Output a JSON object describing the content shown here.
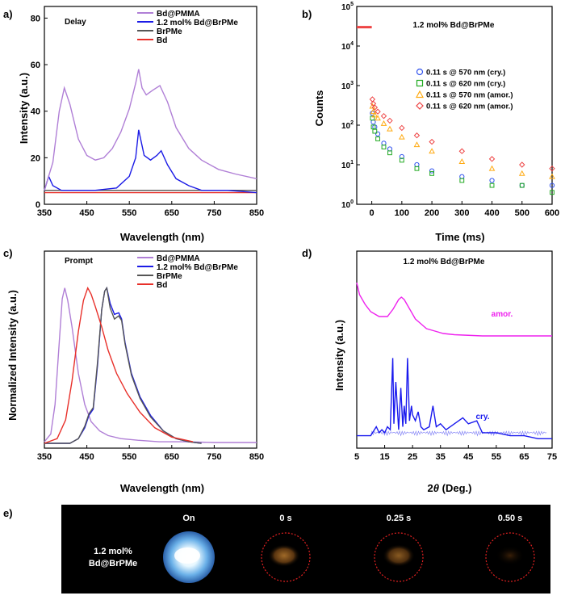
{
  "panels": {
    "a": {
      "letter": "a)",
      "annotation": "Delay",
      "xlabel": "Wavelength (nm)",
      "ylabel": "Intensity (a.u.)"
    },
    "b": {
      "letter": "b)",
      "annotation": "1.2 mol% Bd@BrPMe",
      "xlabel": "Time (ms)",
      "ylabel": "Counts"
    },
    "c": {
      "letter": "c)",
      "annotation": "Prompt",
      "xlabel": "Wavelength (nm)",
      "ylabel": "Normalized Intensity (a.u.)"
    },
    "d": {
      "letter": "d)",
      "annotation": "1.2 mol% Bd@BrPMe",
      "xlabel_prefix": "2",
      "xlabel_theta": "θ",
      "xlabel_suffix": " (Deg.)",
      "ylabel": "Intensity (a.u.)"
    },
    "e": {
      "letter": "e)",
      "sample_line1": "1.2  mol%",
      "sample_line2": "Bd@BrPMe",
      "columns": [
        "On",
        "0 s",
        "0.25 s",
        "0.50 s"
      ]
    }
  },
  "colors": {
    "purple": "#b07fd6",
    "blue": "#1b1be6",
    "gray": "#555555",
    "red": "#e8302a",
    "b_blue": "#3355ee",
    "b_green": "#22aa22",
    "b_orange": "#ffaa11",
    "b_red": "#ee4444",
    "magenta": "#ee22ee",
    "xrd_blue": "#1a1aee"
  },
  "chart_data": [
    {
      "panel": "a",
      "type": "line",
      "xlim": [
        350,
        850
      ],
      "ylim": [
        0,
        85
      ],
      "xticks": [
        350,
        450,
        550,
        650,
        750,
        850
      ],
      "yticks": [
        0,
        20,
        40,
        60,
        80
      ],
      "series": [
        {
          "name": "Bd@PMMA",
          "color": "#b07fd6",
          "x": [
            350,
            370,
            385,
            397,
            410,
            430,
            450,
            470,
            490,
            510,
            530,
            550,
            565,
            572,
            580,
            590,
            605,
            622,
            640,
            660,
            690,
            720,
            760,
            800,
            850
          ],
          "y": [
            6,
            18,
            40,
            50,
            43,
            28,
            21,
            19,
            20,
            24,
            31,
            41,
            52,
            58,
            50,
            47,
            49,
            51,
            44,
            33,
            24,
            19,
            15,
            13,
            11
          ]
        },
        {
          "name": "1.2 mol% Bd@BrPMe",
          "color": "#1b1be6",
          "x": [
            350,
            360,
            370,
            390,
            420,
            470,
            520,
            550,
            565,
            572,
            585,
            600,
            615,
            625,
            640,
            660,
            690,
            720,
            780,
            850
          ],
          "y": [
            6,
            12,
            8,
            6,
            6,
            6,
            7,
            12,
            20,
            32,
            21,
            19,
            21,
            23,
            17,
            11,
            8,
            6,
            6,
            5
          ]
        },
        {
          "name": "BrPMe",
          "color": "#555555",
          "x": [
            350,
            450,
            550,
            650,
            750,
            850
          ],
          "y": [
            6,
            6,
            6,
            6,
            6,
            6
          ]
        },
        {
          "name": "Bd",
          "color": "#e8302a",
          "x": [
            350,
            450,
            550,
            650,
            750,
            850
          ],
          "y": [
            5,
            5,
            5,
            5,
            5,
            5
          ]
        }
      ]
    },
    {
      "panel": "b",
      "type": "scatter",
      "yscale": "log",
      "xlim": [
        -50,
        600
      ],
      "ylim": [
        1,
        100000
      ],
      "xticks": [
        0,
        100,
        200,
        300,
        400,
        500,
        600
      ],
      "yticks": [
        1,
        10,
        100,
        1000,
        10000,
        100000
      ],
      "ytick_labels": [
        "10^0",
        "10^1",
        "10^2",
        "10^3",
        "10^4",
        "10^5"
      ],
      "series": [
        {
          "name": "0.11 s @ 570 nm (cry.)",
          "marker": "circle",
          "color": "#3355ee",
          "x": [
            0,
            2,
            5,
            10,
            20,
            40,
            60,
            100,
            150,
            200,
            300,
            400,
            500,
            600
          ],
          "y": [
            30000,
            200,
            120,
            90,
            60,
            35,
            25,
            16,
            10,
            7,
            5,
            4,
            3,
            3
          ]
        },
        {
          "name": "0.11 s @ 620 nm (cry.)",
          "marker": "square",
          "color": "#22aa22",
          "x": [
            0,
            2,
            5,
            10,
            20,
            40,
            60,
            100,
            150,
            200,
            300,
            400,
            500,
            600
          ],
          "y": [
            30000,
            150,
            90,
            70,
            45,
            28,
            20,
            13,
            8,
            6,
            4,
            3,
            3,
            2
          ]
        },
        {
          "name": "0.11 s @ 570 nm (amor.)",
          "marker": "triangle",
          "color": "#ffaa11",
          "x": [
            0,
            2,
            5,
            10,
            20,
            40,
            60,
            100,
            150,
            200,
            300,
            400,
            500,
            600
          ],
          "y": [
            30000,
            300,
            220,
            180,
            150,
            110,
            80,
            50,
            32,
            22,
            12,
            8,
            6,
            5
          ]
        },
        {
          "name": "0.11 s @ 620 nm (amor.)",
          "marker": "diamond",
          "color": "#ee4444",
          "x": [
            0,
            2,
            5,
            10,
            20,
            40,
            60,
            100,
            150,
            200,
            300,
            400,
            500,
            600
          ],
          "y": [
            30000,
            450,
            350,
            280,
            220,
            170,
            130,
            85,
            55,
            38,
            22,
            14,
            10,
            8
          ]
        }
      ]
    },
    {
      "panel": "c",
      "type": "line",
      "xlim": [
        350,
        850
      ],
      "ylim": [
        0,
        1.05
      ],
      "xticks": [
        350,
        450,
        550,
        650,
        750,
        850
      ],
      "series": [
        {
          "name": "Bd@PMMA",
          "color": "#b07fd6",
          "x": [
            350,
            365,
            375,
            385,
            392,
            398,
            405,
            415,
            430,
            445,
            460,
            480,
            500,
            530,
            570,
            620,
            680,
            750,
            850
          ],
          "y": [
            0.01,
            0.06,
            0.25,
            0.65,
            0.93,
            1.0,
            0.92,
            0.75,
            0.45,
            0.25,
            0.14,
            0.08,
            0.05,
            0.03,
            0.02,
            0.01,
            0.01,
            0.005,
            0.005
          ]
        },
        {
          "name": "1.2 mol% Bd@BrPMe",
          "color": "#1b1be6",
          "x": [
            350,
            410,
            430,
            445,
            455,
            465,
            475,
            485,
            492,
            497,
            505,
            515,
            525,
            532,
            540,
            555,
            575,
            600,
            630,
            660,
            690,
            720
          ],
          "y": [
            0,
            0,
            0.03,
            0.1,
            0.18,
            0.22,
            0.5,
            0.86,
            0.98,
            1.0,
            0.9,
            0.83,
            0.84,
            0.8,
            0.65,
            0.45,
            0.3,
            0.18,
            0.08,
            0.03,
            0.01,
            0
          ]
        },
        {
          "name": "BrPMe",
          "color": "#555555",
          "x": [
            350,
            410,
            430,
            445,
            455,
            465,
            475,
            485,
            492,
            497,
            505,
            515,
            525,
            532,
            540,
            555,
            575,
            600,
            630,
            660,
            690,
            720
          ],
          "y": [
            0,
            0,
            0.03,
            0.11,
            0.19,
            0.23,
            0.52,
            0.86,
            0.98,
            1.0,
            0.87,
            0.8,
            0.82,
            0.79,
            0.64,
            0.44,
            0.29,
            0.17,
            0.08,
            0.03,
            0.01,
            0
          ]
        },
        {
          "name": "Bd",
          "color": "#e8302a",
          "x": [
            350,
            380,
            400,
            415,
            430,
            442,
            452,
            460,
            470,
            485,
            500,
            520,
            545,
            575,
            610,
            650,
            700
          ],
          "y": [
            0,
            0.03,
            0.15,
            0.4,
            0.72,
            0.92,
            1.0,
            0.96,
            0.88,
            0.75,
            0.6,
            0.45,
            0.32,
            0.2,
            0.1,
            0.04,
            0.01
          ]
        }
      ]
    },
    {
      "panel": "d",
      "type": "line",
      "xlim": [
        5,
        75
      ],
      "xticks": [
        5,
        15,
        25,
        35,
        45,
        55,
        65,
        75
      ],
      "series": [
        {
          "name": "amor.",
          "color": "#ee22ee",
          "x": [
            5,
            6,
            8,
            10,
            13,
            16,
            18,
            20,
            21,
            22,
            24,
            26,
            28,
            30,
            33,
            36,
            40,
            50,
            60,
            75
          ],
          "y": [
            0.77,
            0.72,
            0.68,
            0.65,
            0.63,
            0.63,
            0.66,
            0.7,
            0.71,
            0.7,
            0.66,
            0.62,
            0.6,
            0.58,
            0.57,
            0.56,
            0.555,
            0.55,
            0.55,
            0.55
          ]
        },
        {
          "name": "cry.",
          "color": "#1a1aee",
          "x": [
            5,
            10,
            12,
            13,
            14,
            15,
            16,
            17,
            17.9,
            18.3,
            19,
            20,
            20.8,
            21.5,
            22,
            22.6,
            23.2,
            23.9,
            24.6,
            25,
            26,
            27,
            28,
            29,
            31,
            32.3,
            33.5,
            35,
            37,
            40,
            43,
            45,
            48,
            50,
            55,
            60,
            65,
            70,
            75
          ],
          "y": [
            0.02,
            0.02,
            0.05,
            0.03,
            0.04,
            0.03,
            0.05,
            0.04,
            0.28,
            0.06,
            0.2,
            0.04,
            0.18,
            0.05,
            0.12,
            0.06,
            0.28,
            0.07,
            0.12,
            0.09,
            0.07,
            0.1,
            0.05,
            0.04,
            0.05,
            0.12,
            0.05,
            0.06,
            0.04,
            0.06,
            0.08,
            0.06,
            0.07,
            0.03,
            0.03,
            0.02,
            0.02,
            0.01,
            0.01
          ]
        }
      ]
    }
  ]
}
